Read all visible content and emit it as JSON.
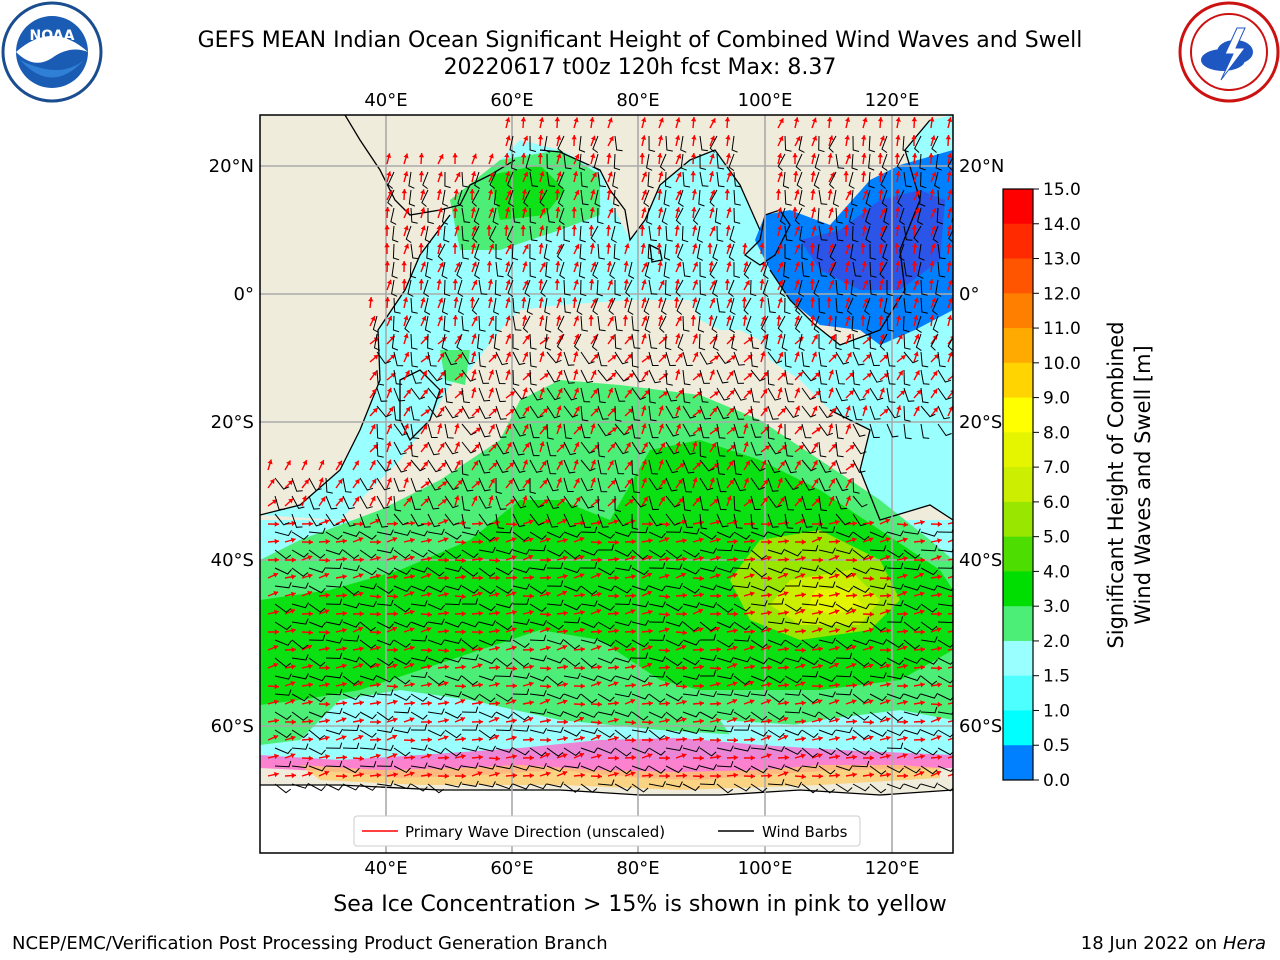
{
  "title_line1": "GEFS MEAN Indian Ocean Significant Height of Combined Wind Waves and Swell",
  "title_line2": "20220617 t00z 120h fcst   Max: 8.37",
  "logos": {
    "left": {
      "icon": "noaa-logo",
      "text": "NOAA"
    },
    "right": {
      "icon": "nws-logo"
    }
  },
  "axes": {
    "top_lon_labels": [
      "40°E",
      "60°E",
      "80°E",
      "100°E",
      "120°E"
    ],
    "bottom_lon_labels": [
      "40°E",
      "60°E",
      "80°E",
      "100°E",
      "120°E"
    ],
    "lat_labels": [
      "20°N",
      "0°",
      "20°S",
      "40°S",
      "60°S"
    ]
  },
  "colorbar": {
    "label_line1": "Significant Height of Combined",
    "label_line2": "Wind Waves and Swell [m]",
    "ticks": [
      "15.0",
      "14.0",
      "13.0",
      "12.0",
      "11.0",
      "10.0",
      "9.0",
      "8.0",
      "7.0",
      "6.0",
      "5.0",
      "4.0",
      "3.0",
      "2.0",
      "1.5",
      "1.0",
      "0.5",
      "0.0"
    ],
    "colors": [
      "#ff0000",
      "#ff2a00",
      "#ff5500",
      "#ff7f00",
      "#ffaa00",
      "#ffd400",
      "#ffff00",
      "#e5f500",
      "#ccee00",
      "#99e600",
      "#4ddd00",
      "#00dd00",
      "#4dee77",
      "#99ffff",
      "#4dffff",
      "#00ffff",
      "#0080ff",
      "#0000ff"
    ]
  },
  "legend": {
    "wave_label": "Primary Wave Direction (unscaled)",
    "barb_label": "Wind Barbs",
    "wave_color": "#ff0000",
    "barb_color": "#000000"
  },
  "note": "Sea Ice Concentration > 15% is shown in pink to yellow",
  "footer": {
    "left": "NCEP/EMC/Verification Post Processing Product Generation Branch",
    "date": "18 Jun 2022 on",
    "machine": "Hera"
  }
}
